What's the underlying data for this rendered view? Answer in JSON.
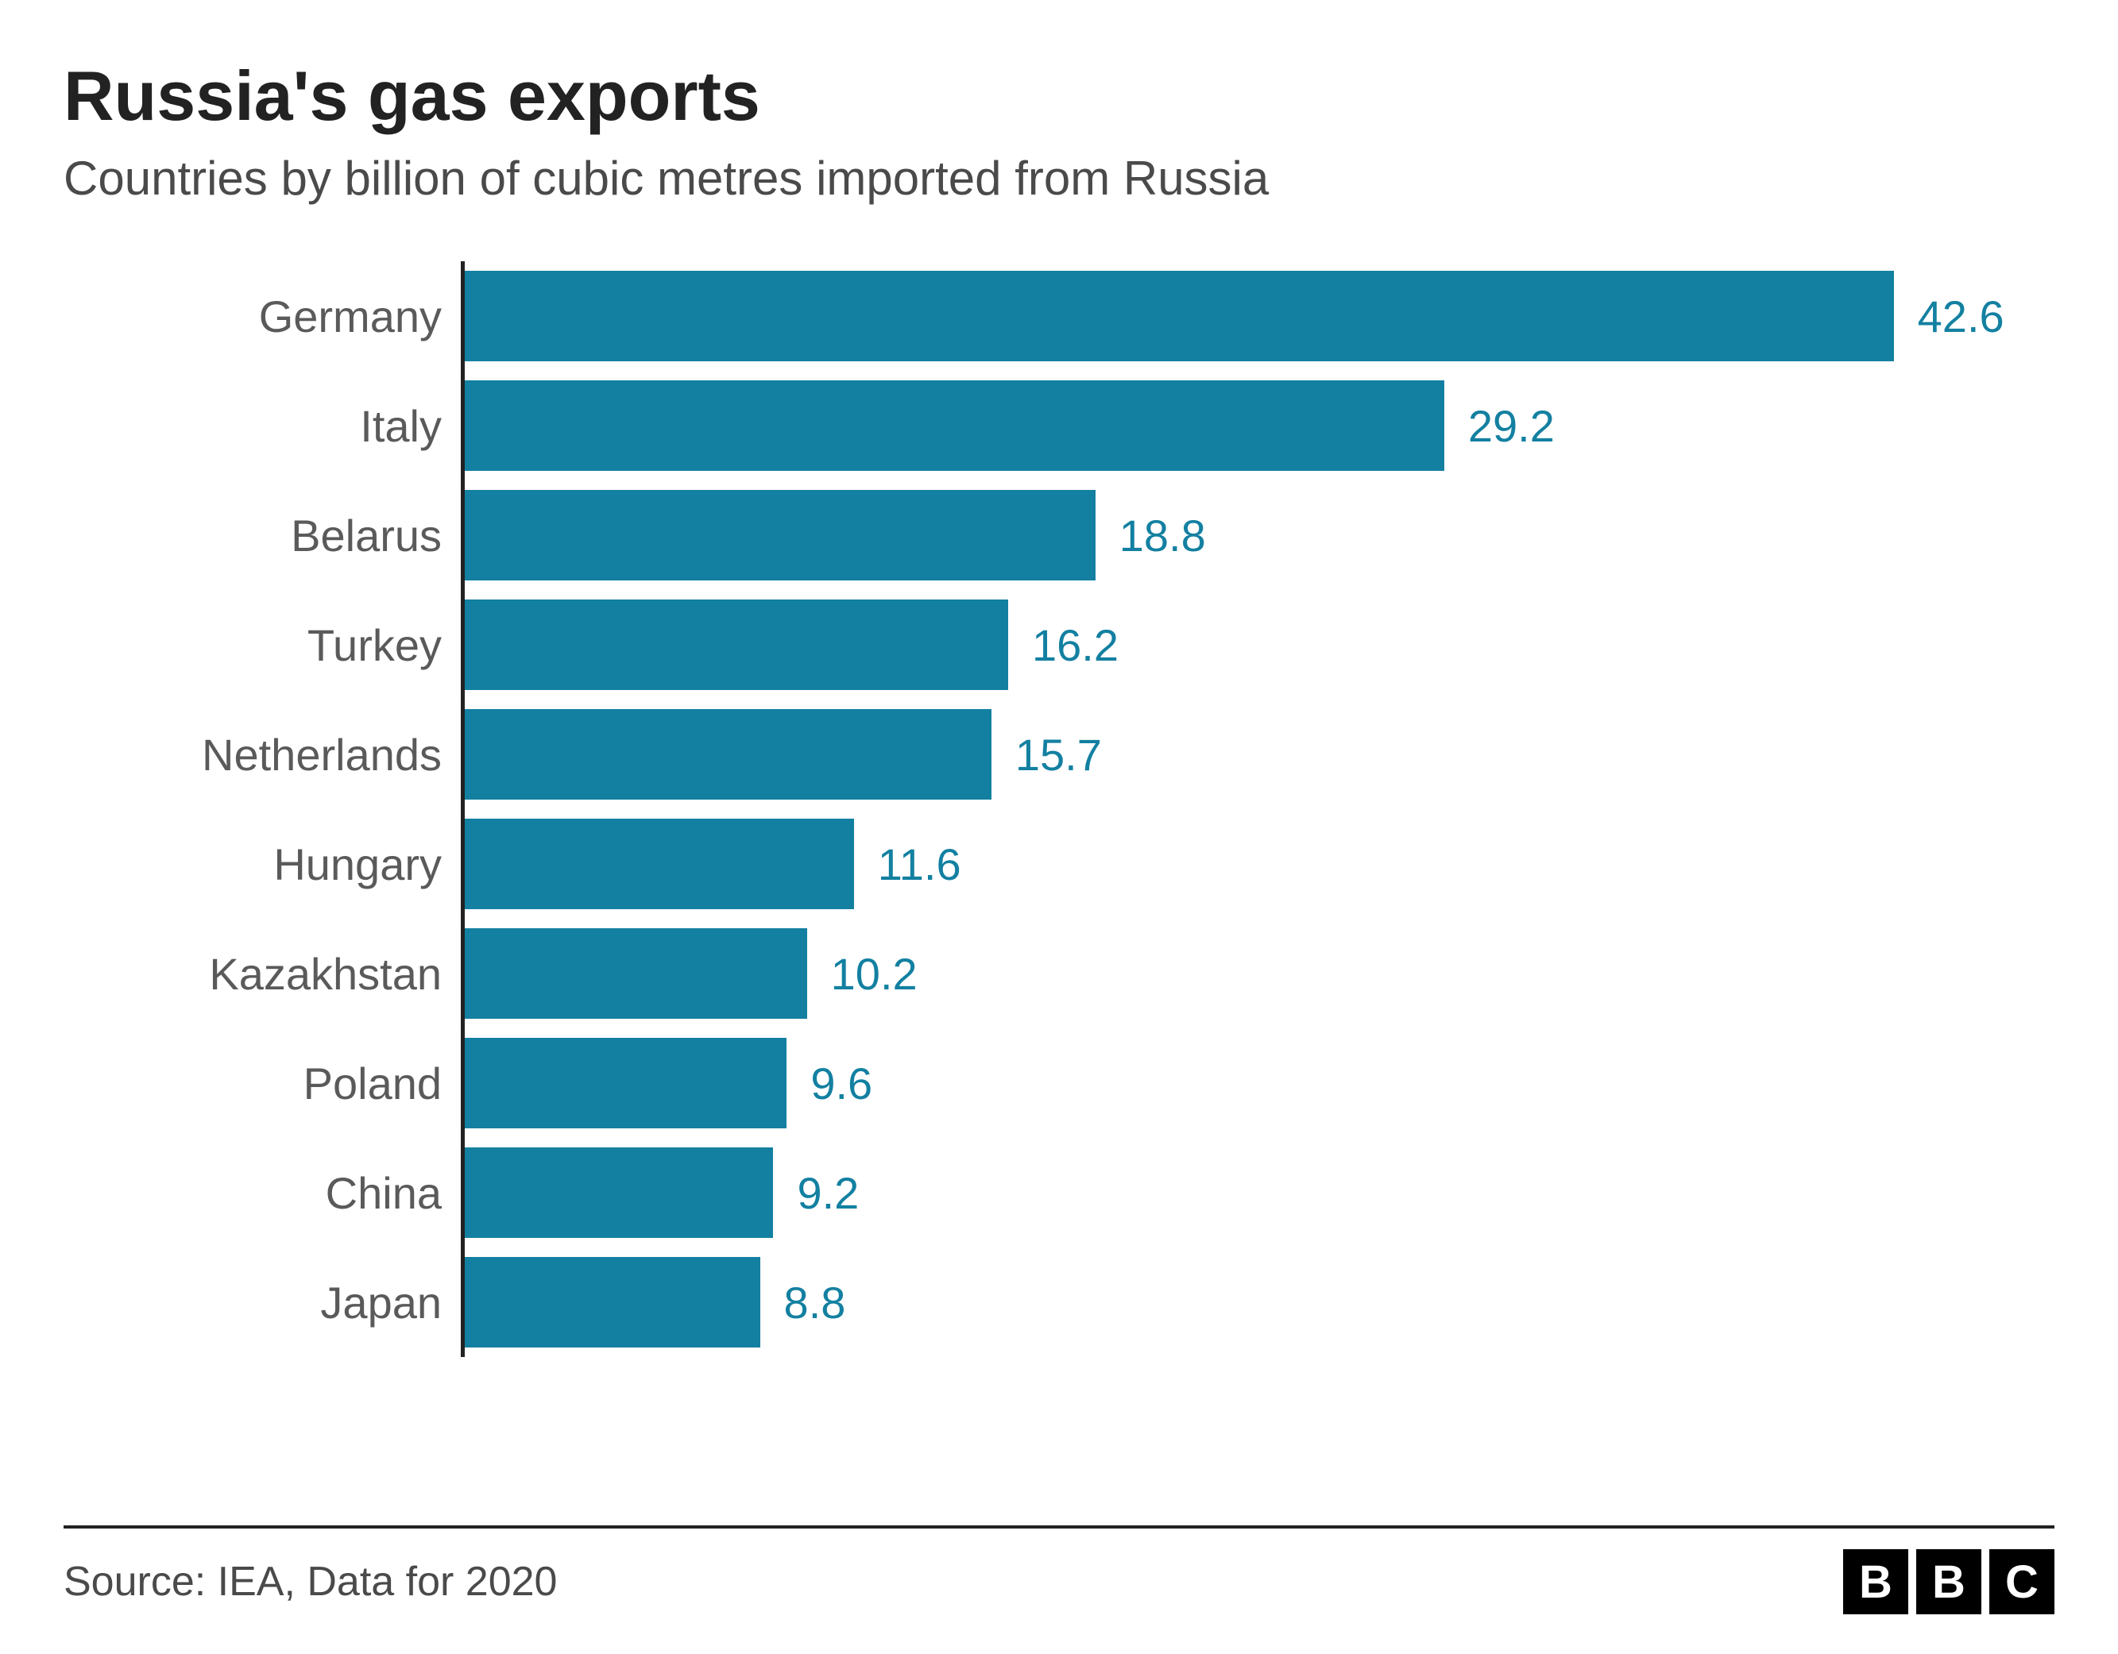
{
  "chart": {
    "type": "bar-horizontal",
    "title": "Russia's gas exports",
    "subtitle": "Countries by billion of cubic metres imported from Russia",
    "title_color": "#222222",
    "title_fontsize": 88,
    "subtitle_color": "#4a4a4a",
    "subtitle_fontsize": 60,
    "label_color": "#5a5a5a",
    "label_fontsize": 56,
    "value_color": "#1380a1",
    "value_fontsize": 56,
    "bar_color": "#1380a1",
    "axis_color": "#222222",
    "background_color": "#ffffff",
    "xmax": 45,
    "categories": [
      "Germany",
      "Italy",
      "Belarus",
      "Turkey",
      "Netherlands",
      "Hungary",
      "Kazakhstan",
      "Poland",
      "China",
      "Japan"
    ],
    "values": [
      42.6,
      29.2,
      18.8,
      16.2,
      15.7,
      11.6,
      10.2,
      9.6,
      9.2,
      8.8
    ],
    "display_values": [
      "42.6",
      "29.2",
      "18.8",
      "16.2",
      "15.7",
      "11.6",
      "10.2",
      "9.6",
      "9.2",
      "8.8"
    ]
  },
  "footer": {
    "source": "Source: IEA, Data for 2020",
    "source_color": "#4a4a4a",
    "source_fontsize": 52,
    "logo_letters": [
      "B",
      "B",
      "C"
    ],
    "logo_bg": "#000000",
    "logo_fg": "#ffffff"
  }
}
